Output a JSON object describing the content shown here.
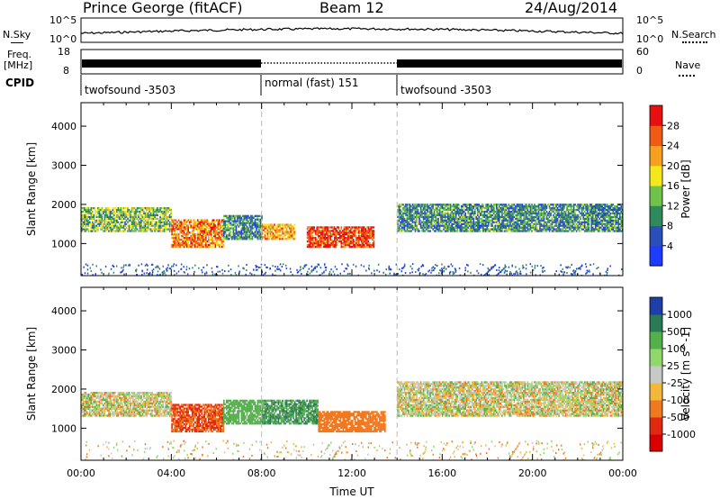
{
  "header": {
    "station": "Prince George (fitACF)",
    "beam": "Beam 12",
    "date": "24/Aug/2014"
  },
  "side_labels": {
    "nsky": "N.Sky",
    "nsearch": "N.Search",
    "freq": "Freq.",
    "freq_unit": "[MHz]",
    "nave": "Nave",
    "cpid": "CPID"
  },
  "noise_axis": {
    "left_top": "10^5",
    "left_bottom": "10^0",
    "right_top": "10^5",
    "right_bottom": "10^0"
  },
  "freq_axis": {
    "left_top": "18",
    "left_bottom": "8",
    "right_top": "60",
    "right_bottom": "0"
  },
  "cpid_segments": [
    {
      "label": "twofsound -3503",
      "start_hour": 0,
      "end_hour": 8
    },
    {
      "label": "normal (fast) 151",
      "start_hour": 8,
      "end_hour": 14
    },
    {
      "label": "twofsound -3503",
      "start_hour": 14,
      "end_hour": 24
    }
  ],
  "chart_data": [
    {
      "type": "heatmap",
      "name": "power",
      "ylabel": "Slant Range [km]",
      "yticks": [
        "1000",
        "2000",
        "3000",
        "4000"
      ],
      "ylim": [
        180,
        4600
      ],
      "xlim": [
        0,
        24
      ],
      "colorbar": {
        "label": "Power [dB]",
        "ticks": [
          "4",
          "8",
          "12",
          "16",
          "20",
          "24",
          "28"
        ],
        "range": [
          0,
          32
        ],
        "colors": [
          "#1e3cff",
          "#2b4fb8",
          "#2e8a5c",
          "#6fc24a",
          "#f4e81c",
          "#f7a020",
          "#f05a14",
          "#e61010"
        ]
      },
      "bands": [
        {
          "start_hour": 0.0,
          "end_hour": 4.0,
          "range_km": [
            1300,
            1900
          ],
          "power_db": 14
        },
        {
          "start_hour": 4.0,
          "end_hour": 6.3,
          "range_km": [
            900,
            1600
          ],
          "power_db": 24
        },
        {
          "start_hour": 6.3,
          "end_hour": 8.0,
          "range_km": [
            1100,
            1700
          ],
          "power_db": 10
        },
        {
          "start_hour": 8.0,
          "end_hour": 9.5,
          "range_km": [
            1100,
            1500
          ],
          "power_db": 22
        },
        {
          "start_hour": 10.0,
          "end_hour": 13.0,
          "range_km": [
            900,
            1400
          ],
          "power_db": 28
        },
        {
          "start_hour": 14.0,
          "end_hour": 24.0,
          "range_km": [
            1300,
            2000
          ],
          "power_db": 10
        }
      ]
    },
    {
      "type": "heatmap",
      "name": "velocity",
      "ylabel": "Slant Range [km]",
      "xlabel": "Time UT",
      "yticks": [
        "1000",
        "2000",
        "3000",
        "4000"
      ],
      "xticks": [
        "00:00",
        "04:00",
        "08:00",
        "12:00",
        "16:00",
        "20:00",
        "00:00"
      ],
      "ylim": [
        180,
        4600
      ],
      "xlim": [
        0,
        24
      ],
      "colorbar": {
        "label": "Velocity [m s^-1]",
        "ticks": [
          "1000",
          "500",
          "100",
          "25",
          "-25",
          "-100",
          "-500",
          "-1000"
        ],
        "colors": [
          "#1f3ea8",
          "#2a7a58",
          "#54b04a",
          "#8fd86c",
          "#c8c8c8",
          "#f2b83a",
          "#f07820",
          "#e02a10",
          "#d80000"
        ]
      },
      "bands": [
        {
          "start_hour": 0.0,
          "end_hour": 4.0,
          "range_km": [
            1300,
            1900
          ],
          "velocity": 0
        },
        {
          "start_hour": 4.0,
          "end_hour": 6.3,
          "range_km": [
            900,
            1600
          ],
          "velocity": -300
        },
        {
          "start_hour": 6.3,
          "end_hour": 8.0,
          "range_km": [
            1100,
            1700
          ],
          "velocity": 200
        },
        {
          "start_hour": 8.0,
          "end_hour": 10.5,
          "range_km": [
            1100,
            1700
          ],
          "velocity": 300
        },
        {
          "start_hour": 10.5,
          "end_hour": 13.5,
          "range_km": [
            900,
            1400
          ],
          "velocity": -200
        },
        {
          "start_hour": 14.0,
          "end_hour": 24.0,
          "range_km": [
            1300,
            2200
          ],
          "velocity": 0
        }
      ]
    }
  ]
}
